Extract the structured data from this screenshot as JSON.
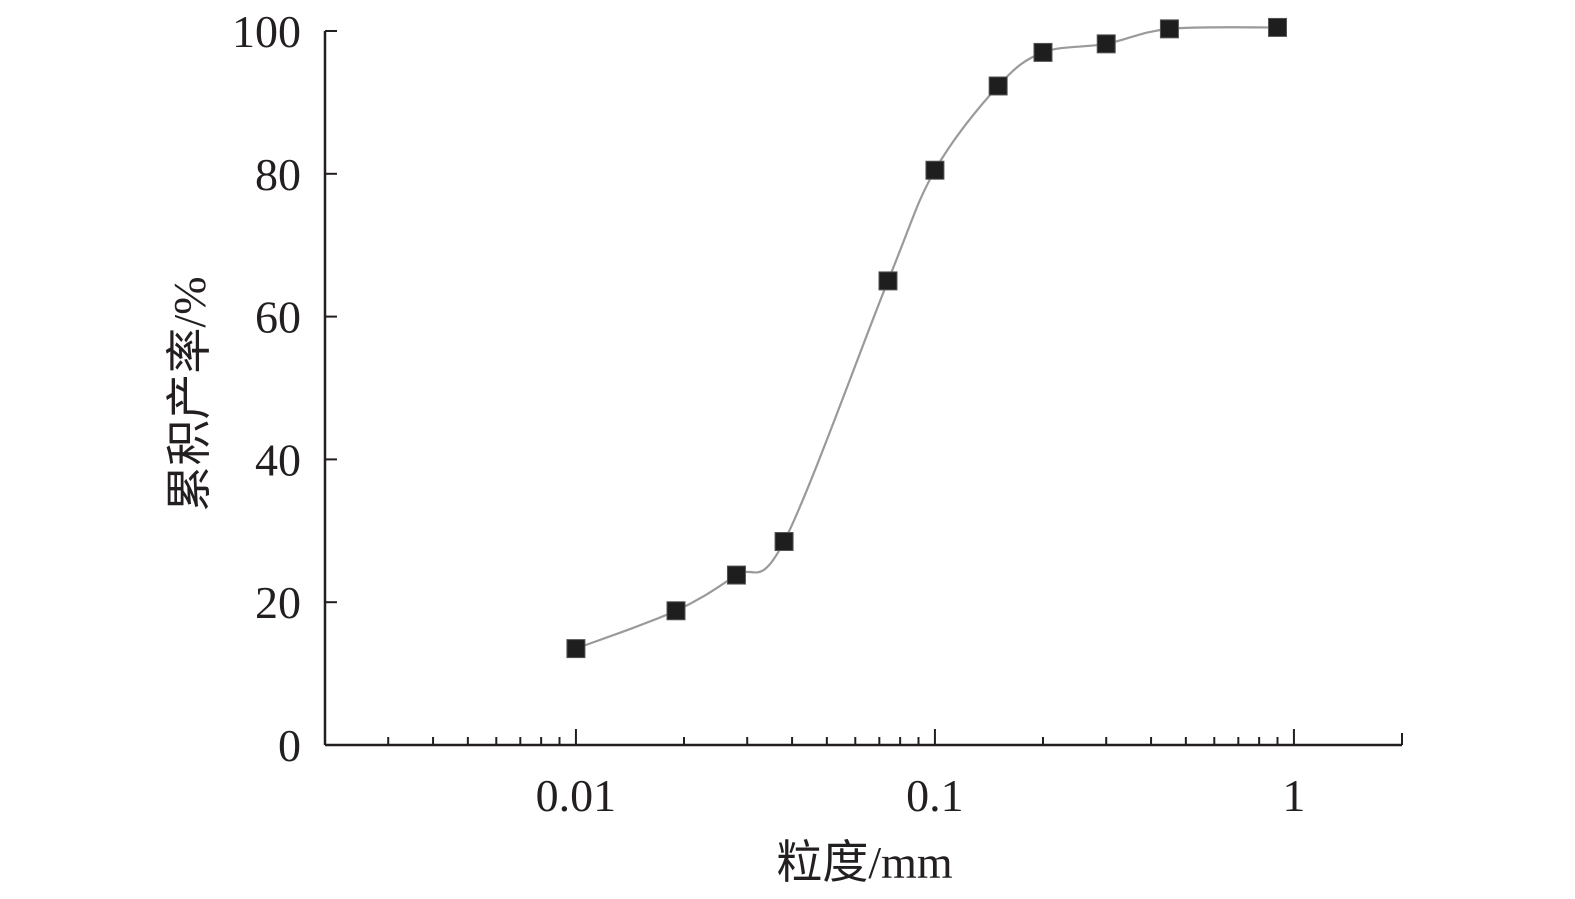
{
  "colors": {
    "axis": "#231f20",
    "curve": "#9a9a9a",
    "marker": "#1e1e1e",
    "background": "#ffffff"
  },
  "chart_data": {
    "type": "scatter",
    "xlabel": "粒度/mm",
    "ylabel": "累积产率/%",
    "x_scale": "log",
    "xlim": [
      0.002,
      2
    ],
    "ylim": [
      0,
      100
    ],
    "x_ticks": [
      {
        "value": 0.01,
        "label": "0.01"
      },
      {
        "value": 0.1,
        "label": "0.1"
      },
      {
        "value": 1,
        "label": "1"
      }
    ],
    "y_ticks": [
      {
        "value": 0,
        "label": "0"
      },
      {
        "value": 20,
        "label": "20"
      },
      {
        "value": 40,
        "label": "40"
      },
      {
        "value": 60,
        "label": "60"
      },
      {
        "value": 80,
        "label": "80"
      },
      {
        "value": 100,
        "label": "100"
      }
    ],
    "grid": false,
    "legend": "none",
    "marker": "square",
    "smooth_line": true,
    "points": [
      {
        "x": 0.01,
        "y": 13.5
      },
      {
        "x": 0.019,
        "y": 18.8
      },
      {
        "x": 0.028,
        "y": 23.8
      },
      {
        "x": 0.038,
        "y": 28.5
      },
      {
        "x": 0.074,
        "y": 65.0
      },
      {
        "x": 0.1,
        "y": 80.5
      },
      {
        "x": 0.15,
        "y": 92.3
      },
      {
        "x": 0.2,
        "y": 97.0
      },
      {
        "x": 0.3,
        "y": 98.2
      },
      {
        "x": 0.45,
        "y": 100.3
      },
      {
        "x": 0.9,
        "y": 100.5
      }
    ]
  }
}
